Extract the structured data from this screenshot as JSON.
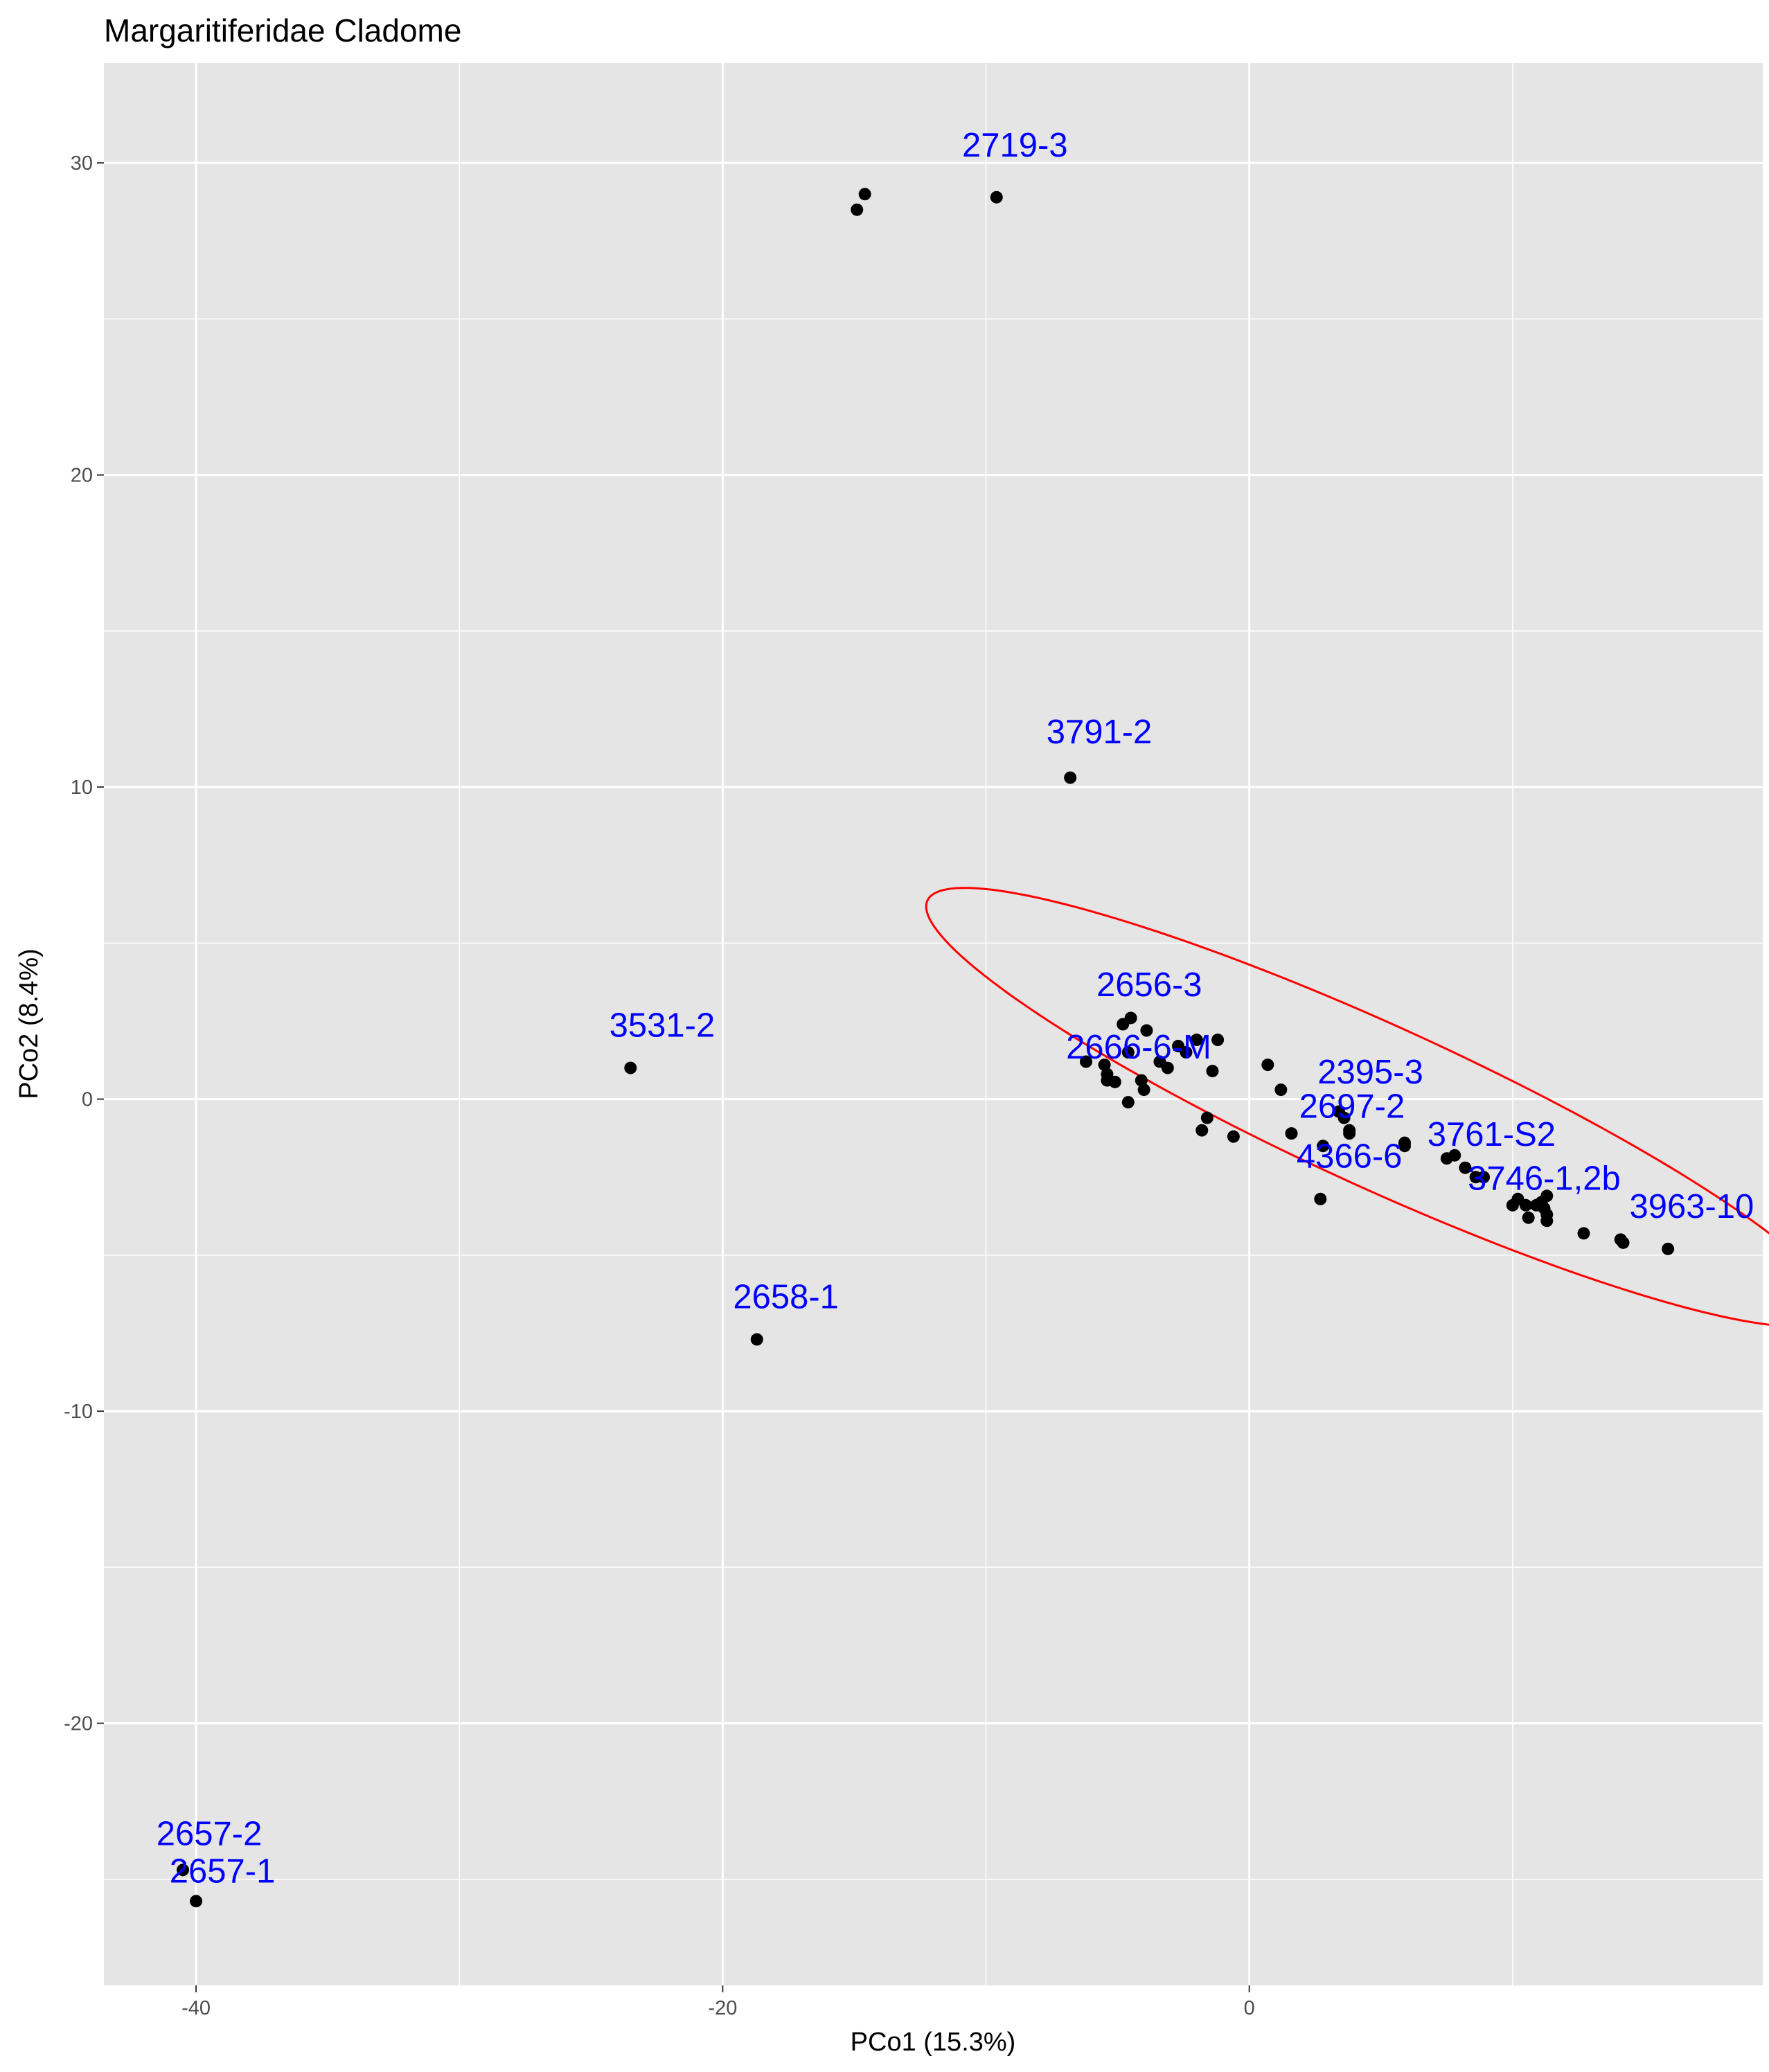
{
  "chart_data": {
    "type": "scatter",
    "title": "Margaritiferidae Cladome",
    "xlabel": "PCo1 (15.3%)",
    "ylabel": "PCo2 (8.4%)",
    "xlim": [
      -43.5,
      19.5
    ],
    "ylim": [
      -28.4,
      33.2
    ],
    "x_ticks": [
      -40,
      -20,
      0
    ],
    "y_ticks": [
      -20,
      -10,
      0,
      10,
      20,
      30
    ],
    "grid": true,
    "colors": {
      "panel": "#e5e5e5",
      "grid": "#ffffff",
      "point": "#000000",
      "label": "#0000ff",
      "ellipse": "#ff0000"
    },
    "points": [
      {
        "x": -14.6,
        "y": 29.0
      },
      {
        "x": -14.9,
        "y": 28.5
      },
      {
        "x": -9.6,
        "y": 28.9
      },
      {
        "x": -6.8,
        "y": 10.3
      },
      {
        "x": -23.5,
        "y": 1.0
      },
      {
        "x": -18.7,
        "y": -7.7
      },
      {
        "x": -40.5,
        "y": -24.7
      },
      {
        "x": -40.0,
        "y": -25.7
      },
      {
        "x": -4.5,
        "y": 2.6
      },
      {
        "x": -4.8,
        "y": 2.4
      },
      {
        "x": -3.9,
        "y": 2.2
      },
      {
        "x": -2.0,
        "y": 1.9
      },
      {
        "x": -1.2,
        "y": 1.9
      },
      {
        "x": -2.7,
        "y": 1.7
      },
      {
        "x": -4.6,
        "y": 1.5
      },
      {
        "x": -2.4,
        "y": 1.5
      },
      {
        "x": -6.2,
        "y": 1.2
      },
      {
        "x": -3.4,
        "y": 1.2
      },
      {
        "x": -5.5,
        "y": 1.1
      },
      {
        "x": 0.7,
        "y": 1.1
      },
      {
        "x": -3.1,
        "y": 1.0
      },
      {
        "x": -1.4,
        "y": 0.9
      },
      {
        "x": -5.4,
        "y": 0.8
      },
      {
        "x": -4.1,
        "y": 0.6
      },
      {
        "x": -5.4,
        "y": 0.6
      },
      {
        "x": -5.1,
        "y": 0.55
      },
      {
        "x": -4.0,
        "y": 0.3
      },
      {
        "x": 1.2,
        "y": 0.3
      },
      {
        "x": -4.6,
        "y": -0.1
      },
      {
        "x": 3.4,
        "y": -0.4
      },
      {
        "x": 3.6,
        "y": -0.6
      },
      {
        "x": -1.6,
        "y": -0.6
      },
      {
        "x": 3.8,
        "y": -1.0
      },
      {
        "x": -1.8,
        "y": -1.0
      },
      {
        "x": 1.6,
        "y": -1.1
      },
      {
        "x": 3.8,
        "y": -1.1
      },
      {
        "x": -0.6,
        "y": -1.2
      },
      {
        "x": 5.9,
        "y": -1.4
      },
      {
        "x": 2.8,
        "y": -1.5
      },
      {
        "x": 5.9,
        "y": -1.5
      },
      {
        "x": 7.8,
        "y": -1.8
      },
      {
        "x": 7.5,
        "y": -1.9
      },
      {
        "x": 8.2,
        "y": -2.2
      },
      {
        "x": 8.6,
        "y": -2.5
      },
      {
        "x": 8.9,
        "y": -2.5
      },
      {
        "x": 11.3,
        "y": -3.1
      },
      {
        "x": 10.2,
        "y": -3.2
      },
      {
        "x": 11.1,
        "y": -3.3
      },
      {
        "x": 10.0,
        "y": -3.4
      },
      {
        "x": 10.5,
        "y": -3.4
      },
      {
        "x": 10.9,
        "y": -3.4
      },
      {
        "x": 11.2,
        "y": -3.5
      },
      {
        "x": 11.3,
        "y": -3.7
      },
      {
        "x": 10.6,
        "y": -3.8
      },
      {
        "x": 11.3,
        "y": -3.9
      },
      {
        "x": 2.7,
        "y": -3.2
      },
      {
        "x": 12.7,
        "y": -4.3
      },
      {
        "x": 14.1,
        "y": -4.5
      },
      {
        "x": 14.2,
        "y": -4.6
      },
      {
        "x": 15.9,
        "y": -4.8
      }
    ],
    "annotations": [
      {
        "text": "2719-3",
        "x": -8.9,
        "y": 30.2
      },
      {
        "text": "3791-2",
        "x": -5.7,
        "y": 11.4
      },
      {
        "text": "3531-2",
        "x": -22.3,
        "y": 2.0
      },
      {
        "text": "2656-3",
        "x": -3.8,
        "y": 3.3
      },
      {
        "text": "2666-6-M",
        "x": -4.2,
        "y": 1.3
      },
      {
        "text": "2395-3",
        "x": 4.6,
        "y": 0.5
      },
      {
        "text": "2697-2",
        "x": 3.9,
        "y": -0.6
      },
      {
        "text": "3761-S2",
        "x": 9.2,
        "y": -1.5
      },
      {
        "text": "4366-6",
        "x": 3.8,
        "y": -2.2
      },
      {
        "text": "3746-1,2b",
        "x": 11.2,
        "y": -2.9
      },
      {
        "text": "3963-10",
        "x": 16.8,
        "y": -3.8
      },
      {
        "text": "2658-1",
        "x": -17.6,
        "y": -6.7
      },
      {
        "text": "2657-2",
        "x": -39.5,
        "y": -23.9
      },
      {
        "text": "2657-1",
        "x": -39.0,
        "y": -25.1
      }
    ],
    "ellipse": {
      "center": [
        4.98,
        -0.26
      ],
      "semi_axes": [
        18.44,
        2.65
      ],
      "angle_deg": -20.9
    }
  }
}
